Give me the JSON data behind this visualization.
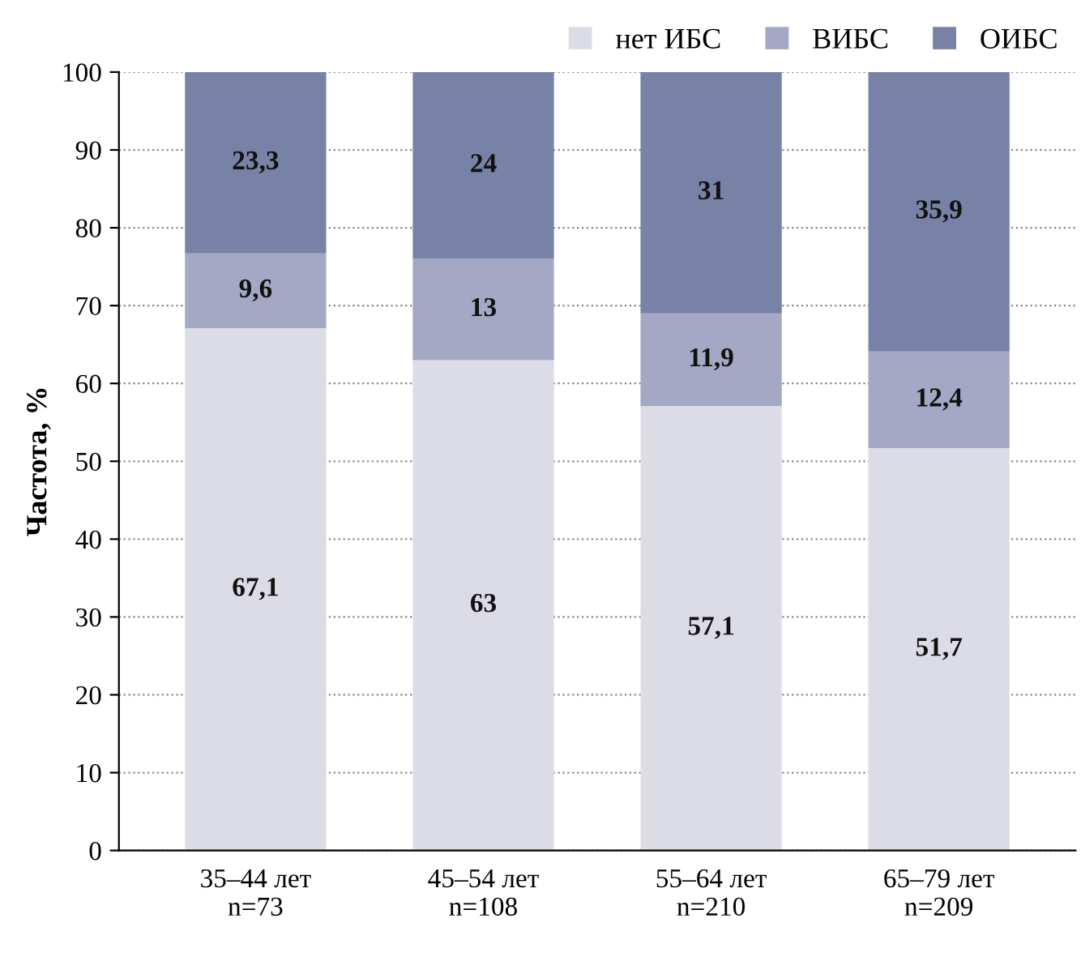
{
  "chart_data": {
    "type": "bar",
    "stacked": true,
    "ylabel": "Частота, %",
    "categories": [
      "35–44 лет\nn=73",
      "45–54 лет\nn=108",
      "55–64 лет\nn=210",
      "65–79 лет\nn=209"
    ],
    "series": [
      {
        "name": "нет ИБС",
        "color": "#dcdce6",
        "values": [
          67.1,
          63,
          57.1,
          51.7
        ],
        "value_labels": [
          "67,1",
          "63",
          "57,1",
          "51,7"
        ]
      },
      {
        "name": "ВИБС",
        "color": "#a4a8c4",
        "values": [
          9.6,
          13,
          11.9,
          12.4
        ],
        "value_labels": [
          "9,6",
          "13",
          "11,9",
          "12,4"
        ]
      },
      {
        "name": "ОИБС",
        "color": "#7782a6",
        "values": [
          23.3,
          24,
          31,
          35.9
        ],
        "value_labels": [
          "23,3",
          "24",
          "31",
          "35,9"
        ]
      }
    ],
    "ylim": [
      0,
      100
    ],
    "yticks": [
      0,
      10,
      20,
      30,
      40,
      50,
      60,
      70,
      80,
      90,
      100
    ],
    "grid": "y",
    "legend": "top right"
  }
}
